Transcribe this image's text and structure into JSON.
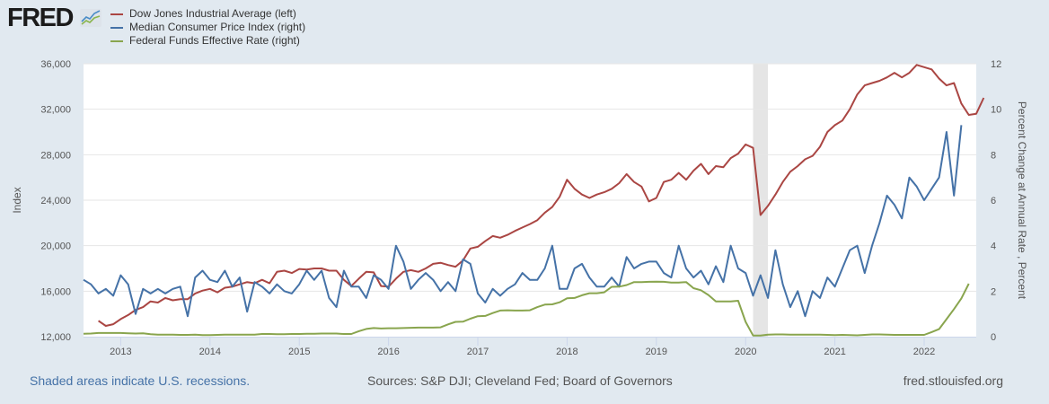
{
  "header": {
    "logo_text": "FRED",
    "logo_icon": "chart-trend-icon"
  },
  "footer": {
    "recession_note": "Shaded areas indicate U.S. recessions.",
    "sources": "Sources: S&P DJI; Cleveland Fed; Board of Governors",
    "site": "fred.stlouisfed.org"
  },
  "chart_data": {
    "type": "line",
    "title": "",
    "xlabel": "",
    "ylabel_left": "Index",
    "ylabel_right": "Percent Change at Annual Rate , Percent",
    "x_start": "2012-08",
    "x_end": "2022-08",
    "x_ticks": [
      "2013",
      "2014",
      "2015",
      "2016",
      "2017",
      "2018",
      "2019",
      "2020",
      "2021",
      "2022"
    ],
    "ylim_left": [
      12000,
      36000
    ],
    "yticks_left": [
      "12,000",
      "16,000",
      "20,000",
      "24,000",
      "28,000",
      "32,000",
      "36,000"
    ],
    "ylim_right": [
      0,
      12
    ],
    "yticks_right": [
      "0",
      "2",
      "4",
      "6",
      "8",
      "10",
      "12"
    ],
    "grid": true,
    "legend_position": "top-left",
    "recessions": [
      {
        "start": "2020-02",
        "end": "2020-04"
      }
    ],
    "series": [
      {
        "name": "Dow Jones Industrial Average (left)",
        "axis": "left",
        "color": "#aa4643",
        "start": "2012-10",
        "values": [
          13400,
          12950,
          13100,
          13550,
          13900,
          14350,
          14600,
          15100,
          15000,
          15400,
          15200,
          15300,
          15300,
          15800,
          16050,
          16200,
          15900,
          16300,
          16400,
          16600,
          16800,
          16700,
          17000,
          16700,
          17700,
          17800,
          17600,
          17950,
          17900,
          18000,
          18000,
          17800,
          17800,
          17000,
          16450,
          17100,
          17700,
          17650,
          16450,
          16400,
          17100,
          17700,
          17850,
          17700,
          18000,
          18400,
          18500,
          18300,
          18150,
          18700,
          19750,
          19900,
          20400,
          20850,
          20700,
          20950,
          21300,
          21600,
          21900,
          22250,
          22900,
          23400,
          24300,
          25800,
          25000,
          24500,
          24200,
          24500,
          24700,
          25000,
          25500,
          26300,
          25600,
          25200,
          23900,
          24200,
          25600,
          25800,
          26400,
          25800,
          26600,
          27200,
          26300,
          27000,
          26900,
          27700,
          28100,
          28900,
          28600,
          22700,
          23500,
          24500,
          25600,
          26500,
          27000,
          27600,
          27900,
          28700,
          30000,
          30600,
          31000,
          32000,
          33300,
          34100,
          34300,
          34500,
          34800,
          35200,
          34800,
          35200,
          35900,
          35700,
          35500,
          34700,
          34100,
          34300,
          32500,
          31500,
          31600,
          33000
        ]
      },
      {
        "name": "Median Consumer Price Index (right)",
        "axis": "right",
        "color": "#4572a7",
        "start": "2012-08",
        "values": [
          2.5,
          2.3,
          1.9,
          2.1,
          1.8,
          2.7,
          2.3,
          1.0,
          2.1,
          1.9,
          2.1,
          1.9,
          2.1,
          2.2,
          0.9,
          2.6,
          2.9,
          2.5,
          2.4,
          2.9,
          2.2,
          2.6,
          1.1,
          2.4,
          2.2,
          1.9,
          2.3,
          2.0,
          1.9,
          2.3,
          2.9,
          2.5,
          2.9,
          1.7,
          1.3,
          2.9,
          2.2,
          2.2,
          1.7,
          2.7,
          2.5,
          2.1,
          4.0,
          3.3,
          2.1,
          2.5,
          2.8,
          2.5,
          2.0,
          2.4,
          2.0,
          3.4,
          3.2,
          1.9,
          1.5,
          2.1,
          1.8,
          2.1,
          2.3,
          2.8,
          2.5,
          2.5,
          3.0,
          4.0,
          2.1,
          2.1,
          3.0,
          3.2,
          2.6,
          2.2,
          2.2,
          2.6,
          2.2,
          3.5,
          3.0,
          3.2,
          3.3,
          3.3,
          2.8,
          2.6,
          4.0,
          3.0,
          2.6,
          2.9,
          2.3,
          3.1,
          2.4,
          4.0,
          3.0,
          2.8,
          1.8,
          2.7,
          1.7,
          3.8,
          2.3,
          1.3,
          2.0,
          0.9,
          2.0,
          1.7,
          2.6,
          2.2,
          3.0,
          3.8,
          4.0,
          2.8,
          4.0,
          5.0,
          6.2,
          5.8,
          5.2,
          7.0,
          6.6,
          6.0,
          6.5,
          7.0,
          9.0,
          6.2,
          9.3
        ]
      },
      {
        "name": "Federal Funds Effective Rate (right)",
        "axis": "right",
        "color": "#89a54e",
        "start": "2012-08",
        "values": [
          0.13,
          0.14,
          0.16,
          0.16,
          0.16,
          0.16,
          0.15,
          0.14,
          0.15,
          0.11,
          0.09,
          0.09,
          0.09,
          0.08,
          0.08,
          0.09,
          0.07,
          0.07,
          0.08,
          0.09,
          0.09,
          0.09,
          0.09,
          0.09,
          0.12,
          0.12,
          0.11,
          0.11,
          0.12,
          0.12,
          0.13,
          0.13,
          0.14,
          0.14,
          0.14,
          0.12,
          0.12,
          0.24,
          0.34,
          0.38,
          0.36,
          0.37,
          0.37,
          0.38,
          0.39,
          0.4,
          0.4,
          0.4,
          0.41,
          0.54,
          0.65,
          0.66,
          0.79,
          0.9,
          0.91,
          1.04,
          1.15,
          1.16,
          1.15,
          1.15,
          1.16,
          1.3,
          1.41,
          1.42,
          1.51,
          1.69,
          1.7,
          1.82,
          1.91,
          1.91,
          1.95,
          2.19,
          2.2,
          2.27,
          2.4,
          2.4,
          2.41,
          2.42,
          2.41,
          2.38,
          2.38,
          2.4,
          2.13,
          2.04,
          1.83,
          1.55,
          1.55,
          1.55,
          1.58,
          0.65,
          0.05,
          0.05,
          0.09,
          0.1,
          0.1,
          0.09,
          0.09,
          0.09,
          0.09,
          0.09,
          0.08,
          0.07,
          0.08,
          0.07,
          0.06,
          0.08,
          0.1,
          0.1,
          0.09,
          0.08,
          0.08,
          0.08,
          0.08,
          0.08,
          0.2,
          0.33,
          0.77,
          1.21,
          1.68,
          2.33
        ]
      }
    ]
  }
}
